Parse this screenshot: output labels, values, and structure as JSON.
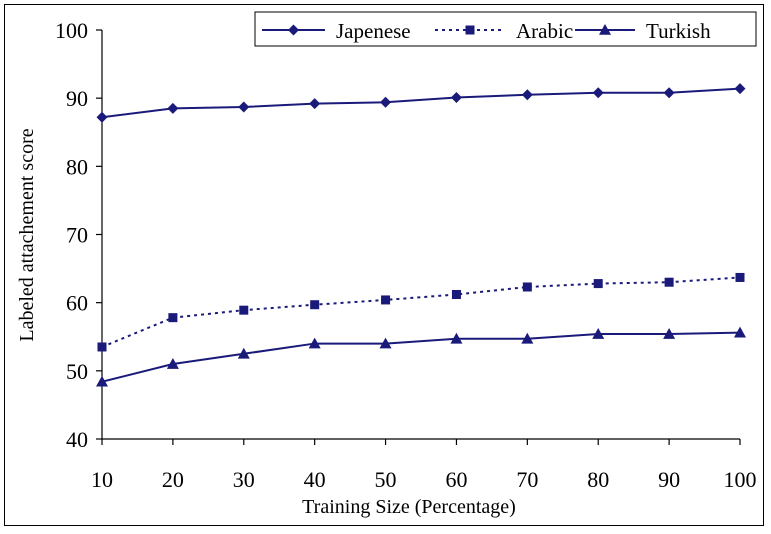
{
  "chart_data": {
    "type": "line",
    "title": "",
    "xlabel": "Training Size (Percentage)",
    "ylabel": "Labeled attachement score",
    "x": [
      10,
      20,
      30,
      40,
      50,
      60,
      70,
      80,
      90,
      100
    ],
    "xlim": [
      10,
      100
    ],
    "ylim": [
      40,
      100
    ],
    "yticks": [
      40,
      50,
      60,
      70,
      80,
      90,
      100
    ],
    "grid": false,
    "legend_position": "top-right",
    "series": [
      {
        "name": "Japenese",
        "values": [
          87.2,
          88.5,
          88.7,
          89.2,
          89.4,
          90.1,
          90.5,
          90.8,
          90.8,
          91.4
        ],
        "marker": "diamond",
        "line_style": "solid",
        "color": "#1a1a7a"
      },
      {
        "name": "Arabic",
        "values": [
          53.5,
          57.8,
          58.9,
          59.7,
          60.4,
          61.2,
          62.3,
          62.8,
          63.0,
          63.7
        ],
        "marker": "square",
        "line_style": "dotted",
        "color": "#1a1a7a"
      },
      {
        "name": "Turkish",
        "values": [
          48.4,
          51.0,
          52.5,
          54.0,
          54.0,
          54.7,
          54.7,
          55.4,
          55.4,
          55.6
        ],
        "marker": "triangle",
        "line_style": "solid",
        "color": "#1a1a7a"
      }
    ]
  }
}
